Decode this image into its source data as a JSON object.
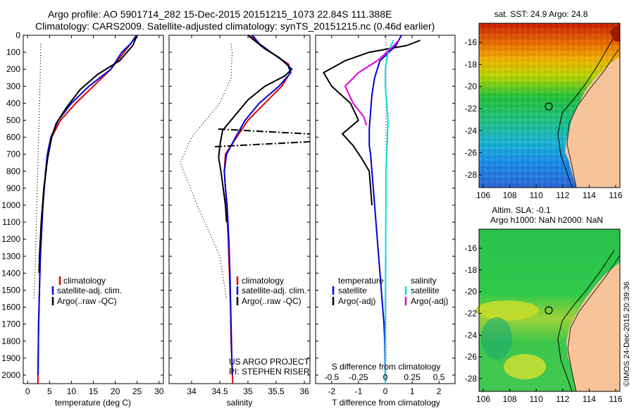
{
  "header": {
    "line1": "Argo profile: AO 5901714_282 15-Dec-2015 20151215_1073 22.84S 111.388E",
    "line2": "Climatology: CARS2009. Satellite-adjusted climatology: synTS_20151215.nc (0.46d earlier)"
  },
  "chart_data": [
    {
      "type": "line",
      "id": "temperature",
      "xlabel": "temperature (deg C)",
      "ylabel": "",
      "xlim": [
        -1,
        31
      ],
      "ylim": [
        2050,
        0
      ],
      "xticks": [
        0,
        5,
        10,
        15,
        20,
        25,
        30
      ],
      "yticks": [
        0,
        100,
        200,
        300,
        400,
        500,
        600,
        700,
        800,
        900,
        1000,
        1100,
        1200,
        1300,
        1400,
        1500,
        1600,
        1700,
        1800,
        1900,
        2000
      ],
      "legend": [
        "climatology",
        "satellite-adj. clim.",
        "Argo(..raw -QC)"
      ],
      "series": [
        {
          "name": "climatology",
          "color": "#e00000",
          "style": "solid",
          "x": [
            24.8,
            23.5,
            22,
            19,
            15,
            11,
            7.5,
            5.5,
            4.6,
            4.2,
            3.8,
            3.5,
            3.3,
            3.1,
            2.9,
            2.8,
            2.7,
            2.6,
            2.5,
            2.45,
            2.4,
            2.35
          ],
          "y": [
            0,
            50,
            100,
            200,
            300,
            400,
            500,
            600,
            700,
            800,
            900,
            1000,
            1100,
            1200,
            1300,
            1400,
            1500,
            1600,
            1700,
            1800,
            1900,
            2050
          ]
        },
        {
          "name": "satellite-adj. clim.",
          "color": "#0000e0",
          "style": "solid",
          "x": [
            24.9,
            23.5,
            21.5,
            19,
            14,
            10,
            7,
            5.3,
            4.5,
            4.1,
            3.8,
            3.5,
            3.3,
            3.1,
            2.9,
            2.8,
            2.7,
            2.6,
            2.5,
            2.45,
            2.4
          ],
          "y": [
            0,
            50,
            100,
            200,
            300,
            400,
            500,
            600,
            700,
            800,
            900,
            1000,
            1100,
            1200,
            1300,
            1400,
            1500,
            1600,
            1700,
            1800,
            2000
          ]
        },
        {
          "name": "Argo(..raw -QC)",
          "color": "#000000",
          "style": "solid",
          "x": [
            25,
            24,
            21,
            16,
            12,
            9,
            6.5,
            5.5,
            4.6,
            4.2,
            3.7,
            3.4,
            3.1,
            2.9,
            2.7,
            2.6
          ],
          "y": [
            0,
            60,
            150,
            230,
            320,
            420,
            520,
            600,
            720,
            800,
            900,
            1000,
            1100,
            1200,
            1300,
            1400
          ]
        },
        {
          "name": "",
          "color": "#000000",
          "style": "dotted",
          "x": [
            3,
            2.9,
            2.6,
            2.3,
            2,
            1.8,
            1.6,
            1.5
          ],
          "y": [
            50,
            200,
            500,
            800,
            1100,
            1300,
            1450,
            1550
          ]
        }
      ]
    },
    {
      "type": "line",
      "id": "salinity",
      "xlabel": "salinity",
      "ylabel": "",
      "xlim": [
        33.6,
        36.1
      ],
      "ylim": [
        2050,
        0
      ],
      "xticks": [
        34,
        34.5,
        35,
        35.5,
        36
      ],
      "legend": [
        "climatology",
        "satellite-adj. clim.",
        "Argo(..raw -QC)"
      ],
      "annotation": [
        "US ARGO PROJECT",
        "PI: STEPHEN RISER"
      ],
      "series": [
        {
          "name": "climatology",
          "color": "#e00000",
          "style": "solid",
          "x": [
            35.05,
            35.2,
            35.45,
            35.72,
            35.75,
            35.6,
            35.3,
            35.0,
            34.8,
            34.6,
            34.58,
            34.6,
            34.62,
            34.65,
            34.67,
            34.69,
            34.7,
            34.72,
            34.73
          ],
          "y": [
            0,
            50,
            110,
            170,
            220,
            300,
            400,
            500,
            600,
            700,
            800,
            900,
            1000,
            1200,
            1400,
            1600,
            1800,
            1950,
            2050
          ]
        },
        {
          "name": "satellite-adj. clim.",
          "color": "#0000e0",
          "style": "solid",
          "x": [
            35.08,
            35.2,
            35.45,
            35.7,
            35.76,
            35.55,
            35.2,
            34.95,
            34.78,
            34.62,
            34.58,
            34.6,
            34.63,
            34.66,
            34.68,
            34.7,
            34.72
          ],
          "y": [
            0,
            50,
            110,
            170,
            220,
            300,
            400,
            500,
            600,
            700,
            800,
            900,
            1000,
            1200,
            1400,
            1700,
            2000
          ]
        },
        {
          "name": "Argo(..raw -QC)",
          "color": "#000000",
          "style": "solid",
          "x": [
            35.0,
            35.3,
            35.55,
            35.78,
            35.65,
            35.3,
            35.0,
            34.75,
            34.55,
            34.5,
            34.48,
            34.52,
            34.56,
            34.6,
            34.62
          ],
          "y": [
            0,
            80,
            130,
            200,
            240,
            300,
            380,
            480,
            560,
            650,
            720,
            800,
            900,
            1000,
            1100
          ]
        },
        {
          "name": "",
          "color": "#000000",
          "style": "dotted",
          "x": [
            34.7,
            34.72,
            34.7,
            34.5,
            34.0,
            33.8,
            34.1,
            34.5,
            34.62
          ],
          "y": [
            50,
            100,
            250,
            400,
            600,
            750,
            1000,
            1300,
            1550
          ]
        }
      ]
    },
    {
      "type": "line",
      "id": "difference",
      "xlabel": "T difference from climatology",
      "xlabel_top": "S difference from climatology",
      "xlim": [
        -2.6,
        2.6
      ],
      "ylim": [
        2050,
        0
      ],
      "xticks": [
        -2,
        -1,
        0,
        1,
        2
      ],
      "xtick_labels": [
        "-2",
        "-1",
        "0",
        "1",
        "2"
      ],
      "sticks": [
        "-0.5",
        "-0.25",
        "0",
        "0.25",
        "0.5"
      ],
      "legend_titles": [
        "temperature",
        "salinity"
      ],
      "legend": [
        "satellite",
        "Argo(-adj)",
        "satellite",
        "Argo(-adj)"
      ],
      "series": [
        {
          "name": "satellite",
          "color": "#0000e0",
          "style": "solid",
          "x": [
            0.6,
            0.4,
            -0.2,
            -0.4,
            -0.5,
            -0.55,
            -0.6,
            -0.6,
            -0.55,
            -0.5,
            -0.45,
            -0.4,
            -0.35,
            -0.3,
            -0.25,
            -0.2,
            -0.15,
            -0.1,
            -0.05,
            -0.02,
            0
          ],
          "y": [
            0,
            60,
            150,
            250,
            350,
            450,
            550,
            650,
            700,
            800,
            900,
            1000,
            1100,
            1200,
            1300,
            1400,
            1500,
            1600,
            1700,
            1800,
            2050
          ]
        },
        {
          "name": "Argo(-adj)",
          "color": "#000000",
          "style": "solid",
          "x": [
            1.3,
            0.8,
            -0.6,
            -1.5,
            -2.3,
            -2.0,
            -1.3,
            -1.0,
            -1.6,
            -1.2,
            -0.9,
            -0.6,
            -0.5
          ],
          "y": [
            30,
            60,
            100,
            150,
            220,
            300,
            400,
            500,
            580,
            650,
            720,
            800,
            1000
          ]
        },
        {
          "name": "satellite",
          "color": "#00e0e0",
          "style": "solid",
          "x": [
            0.3,
            0.1,
            0.0,
            0.0,
            0.05,
            0.1,
            0.08,
            0.05,
            0.02,
            0.02,
            0.01,
            0.0,
            0.0
          ],
          "y": [
            30,
            100,
            200,
            300,
            400,
            500,
            600,
            700,
            800,
            1000,
            1300,
            1700,
            2050
          ]
        },
        {
          "name": "Argo(-adj)",
          "color": "#e000e0",
          "style": "solid",
          "x": [
            0.5,
            0.2,
            -0.3,
            -1.0,
            -1.5,
            -1.2,
            -0.8,
            -0.7
          ],
          "y": [
            30,
            80,
            150,
            220,
            300,
            400,
            480,
            530
          ]
        }
      ]
    }
  ],
  "maps": [
    {
      "id": "sst",
      "title": "sat. SST: 24.9 Argo: 24.8",
      "xticks": [
        "106",
        "108",
        "110",
        "112",
        "114",
        "116"
      ],
      "yticks": [
        "-16",
        "-18",
        "-20",
        "-22",
        "-24",
        "-26",
        "-28"
      ]
    },
    {
      "id": "sla",
      "title1": "Altim. SLA: -0.1",
      "title2": "Argo h1000: NaN h2000: NaN",
      "xticks": [
        "106",
        "108",
        "110",
        "112",
        "114",
        "116"
      ],
      "yticks": [
        "-16",
        "-18",
        "-20",
        "-22",
        "-24",
        "-26",
        "-28"
      ]
    }
  ],
  "footer": {
    "credit": "©IMOS 24-Dec-2015 20:39:36"
  }
}
